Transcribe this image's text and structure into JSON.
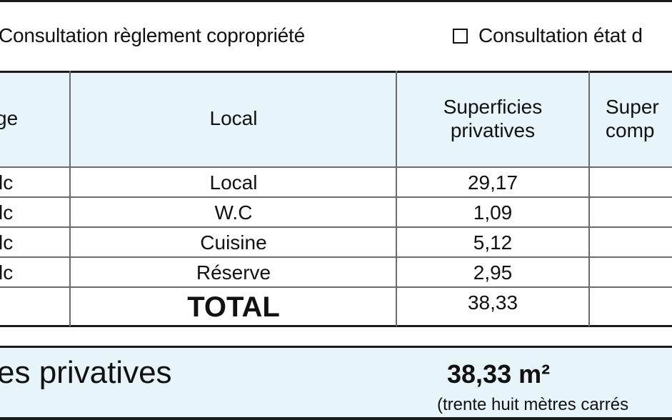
{
  "checkboxes": {
    "item1_label": "Consultation règlement copropriété",
    "item2_label": "Consultation état d"
  },
  "table": {
    "headers": {
      "col1": "ge",
      "col2": "Local",
      "col3": "Superficies privatives",
      "col4": "Super comp"
    },
    "rows": [
      {
        "level": "lc",
        "local": "Local",
        "surface": "29,17"
      },
      {
        "level": "lc",
        "local": "W.C",
        "surface": "1,09"
      },
      {
        "level": "lc",
        "local": "Cuisine",
        "surface": "5,12"
      },
      {
        "level": "lc",
        "local": "Réserve",
        "surface": "2,95"
      }
    ],
    "total_label": "TOTAL",
    "total_value": "38,33"
  },
  "summary": {
    "label": "es privatives",
    "value": "38,33 m²",
    "in_words": "(trente huit mètres carrés"
  }
}
